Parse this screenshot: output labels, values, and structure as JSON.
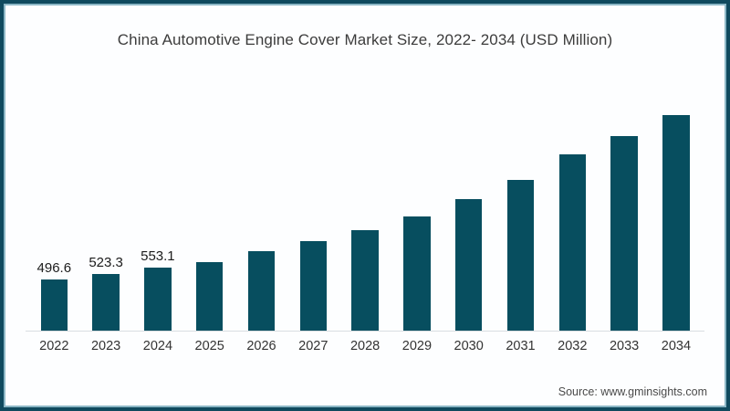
{
  "frame": {
    "border_color": "#0f4a5e",
    "inner_line_color": "#2f7c98"
  },
  "chart_data": {
    "type": "bar",
    "title": "China Automotive Engine Cover Market Size, 2022- 2034 (USD Million)",
    "categories": [
      "2022",
      "2023",
      "2024",
      "2025",
      "2026",
      "2027",
      "2028",
      "2029",
      "2030",
      "2031",
      "2032",
      "2033",
      "2034"
    ],
    "values": [
      496.6,
      523.3,
      553.1,
      581,
      631,
      679,
      732,
      797,
      879,
      971,
      1093,
      1180,
      1280
    ],
    "value_labels_shown": [
      "496.6",
      "523.3",
      "553.1"
    ],
    "xlabel": "",
    "ylabel": "",
    "legend": "none",
    "gridlines": false,
    "y_axis_visible": false,
    "y_baseline_value": 253,
    "y_max_value": 1280,
    "bar_color": "#074e5f",
    "axis_line_color": "#d9dde1"
  },
  "footer": {
    "source_text": "Source: www.gminsights.com"
  }
}
